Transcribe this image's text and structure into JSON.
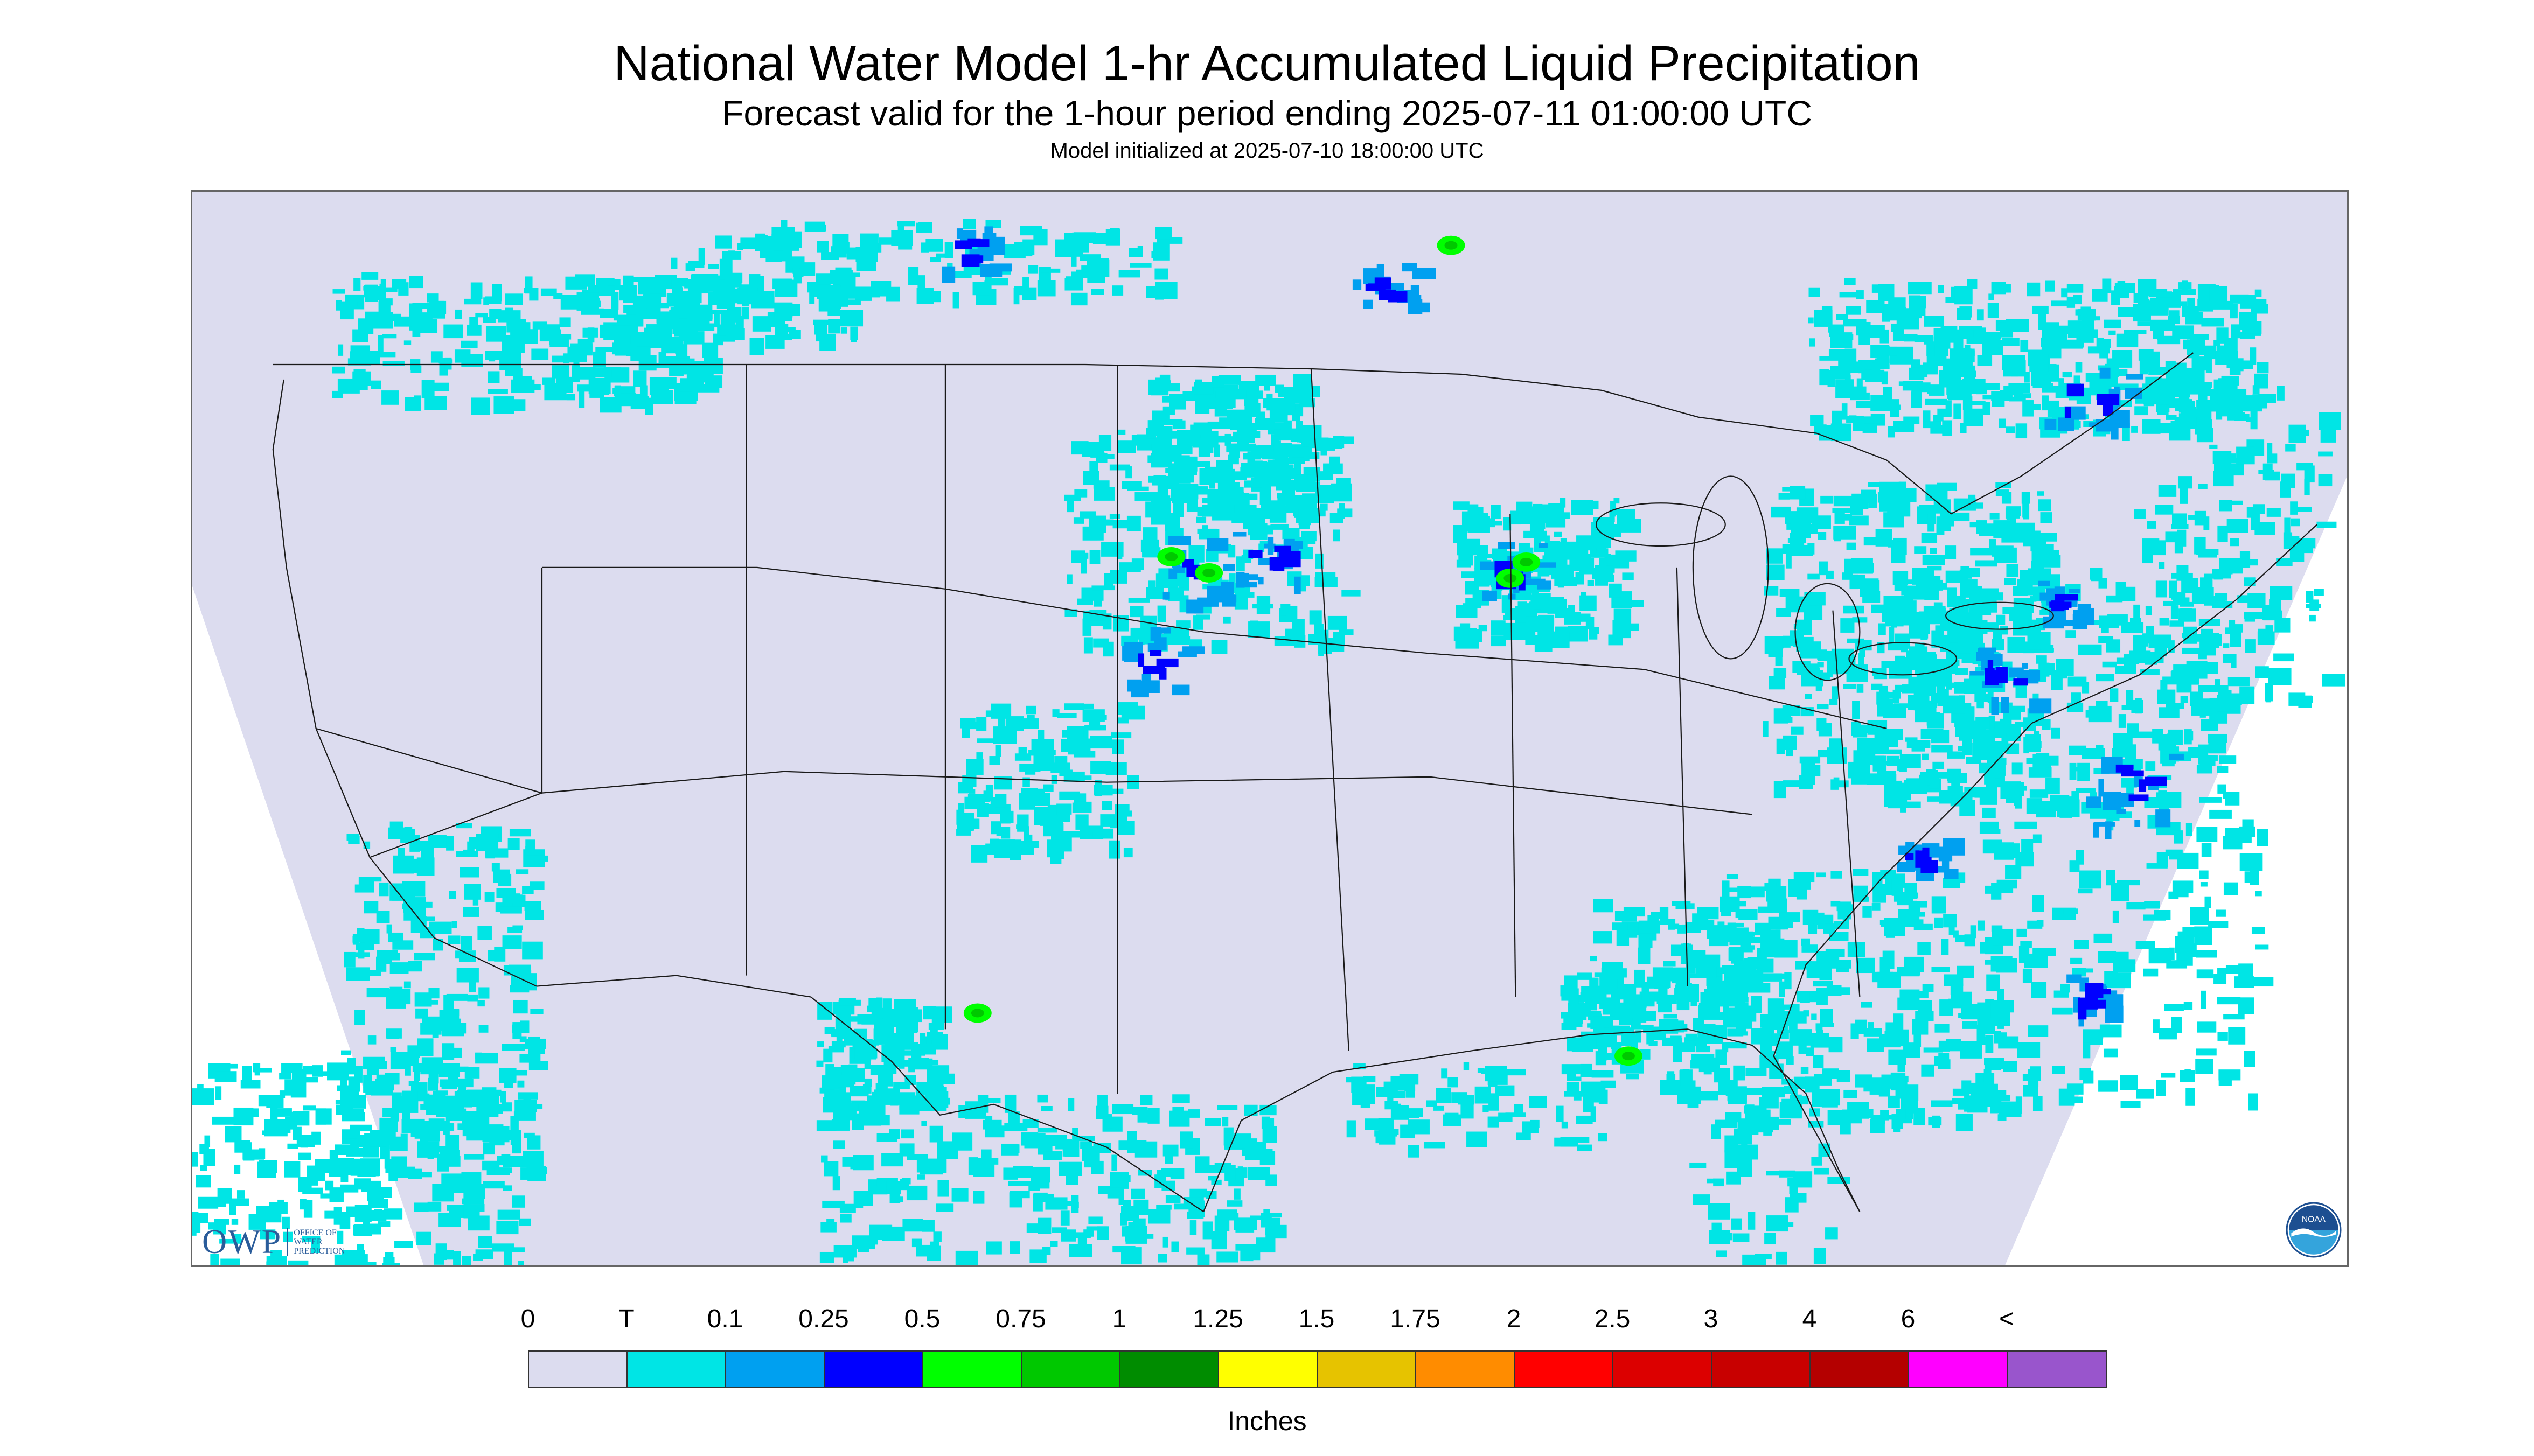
{
  "header": {
    "title": "National Water Model 1-hr Accumulated Liquid Precipitation",
    "subtitle": "Forecast valid for the 1-hour period ending 2025-07-11 01:00:00 UTC",
    "init_text": "Model initialized at 2025-07-10 18:00:00 UTC"
  },
  "map": {
    "region": "CONUS",
    "background_color": "#dcdcef",
    "outside_color": "#ffffff",
    "boundary_color": "#1a1a1a",
    "precip_colors": {
      "trace": "#00e5e5",
      "light": "#00a0f0",
      "moderate": "#0000ff",
      "heavy": "#00ff00",
      "heavier": "#00c800",
      "intense": "#008c00"
    }
  },
  "logos": {
    "owp": {
      "mark": "OWP",
      "line1": "OFFICE OF",
      "line2": "WATER",
      "line3": "PREDICTION"
    },
    "noaa": {
      "icon": "noaa-logo-icon",
      "text": "NOAA"
    }
  },
  "legend": {
    "tick_labels": [
      "0",
      "T",
      "0.1",
      "0.25",
      "0.5",
      "0.75",
      "1",
      "1.25",
      "1.5",
      "1.75",
      "2",
      "2.5",
      "3",
      "4",
      "6",
      "<"
    ],
    "colors": [
      "#dcdcef",
      "#00e5e5",
      "#00a0f0",
      "#0000ff",
      "#00ff00",
      "#00c800",
      "#008c00",
      "#ffff00",
      "#e6c300",
      "#ff8c00",
      "#ff0000",
      "#dc0000",
      "#c80000",
      "#b40000",
      "#ff00ff",
      "#9955cc"
    ],
    "units": "Inches"
  }
}
